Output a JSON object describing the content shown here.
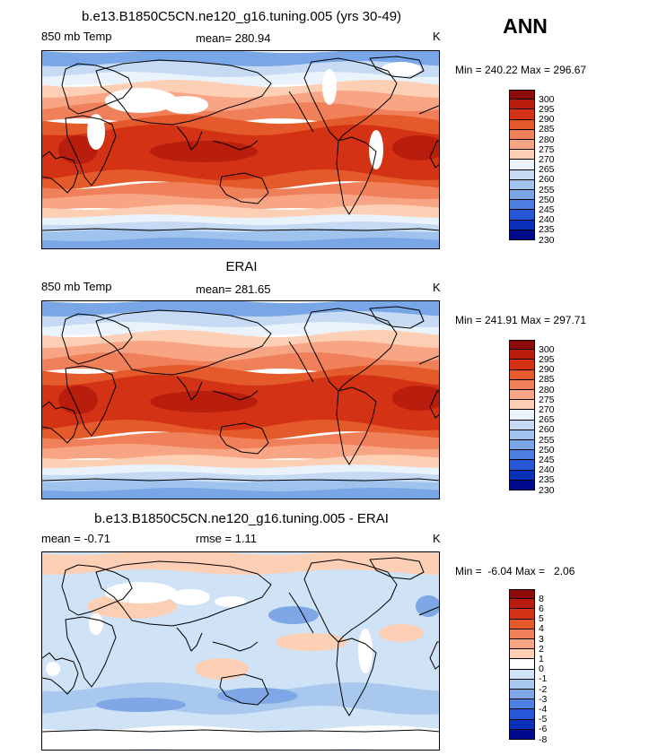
{
  "season": "ANN",
  "panels": [
    {
      "title": "b.e13.B1850C5CN.ne120_g16.tuning.005 (yrs 30-49)",
      "left_label": "850 mb Temp",
      "center_label": "mean= 280.94",
      "units": "K",
      "minmax": "Min = 240.22 Max = 296.67",
      "colorbar_levels": [
        "300",
        "295",
        "290",
        "285",
        "280",
        "275",
        "270",
        "265",
        "260",
        "255",
        "250",
        "245",
        "240",
        "235",
        "230"
      ]
    },
    {
      "title": "ERAI",
      "left_label": "850 mb Temp",
      "center_label": "mean= 281.65",
      "units": "K",
      "minmax": "Min = 241.91 Max = 297.71",
      "colorbar_levels": [
        "300",
        "295",
        "290",
        "285",
        "280",
        "275",
        "270",
        "265",
        "260",
        "255",
        "250",
        "245",
        "240",
        "235",
        "230"
      ]
    },
    {
      "title": "b.e13.B1850C5CN.ne120_g16.tuning.005 - ERAI",
      "left_label": "mean =   -0.71",
      "center_label": "rmse =    1.11",
      "units": "K",
      "minmax": "Min =  -6.04 Max =   2.06",
      "colorbar_levels": [
        "8",
        "6",
        "5",
        "4",
        "3",
        "2",
        "1",
        "0",
        "-1",
        "-2",
        "-3",
        "-4",
        "-5",
        "-6",
        "-8"
      ]
    }
  ],
  "colors": {
    "temp_scale": [
      "#8c0a0a",
      "#b81d0e",
      "#d33314",
      "#e55a2a",
      "#f0805a",
      "#f8a585",
      "#fdcfb4",
      "#eaf2fb",
      "#c6dbf3",
      "#9fc3ec",
      "#78a6e6",
      "#4d80e0",
      "#2557d6",
      "#0a2fb8",
      "#000a8c"
    ],
    "diff_scale": [
      "#8c0a0a",
      "#b81d0e",
      "#d33314",
      "#e55a2a",
      "#f0805a",
      "#f8a585",
      "#fdcfb4",
      "#ffffff",
      "#cfe2f6",
      "#a9c8ee",
      "#7fa7e5",
      "#4d80e0",
      "#2557d6",
      "#0a2fb8",
      "#000a8c"
    ],
    "missing": "#ffffff"
  }
}
